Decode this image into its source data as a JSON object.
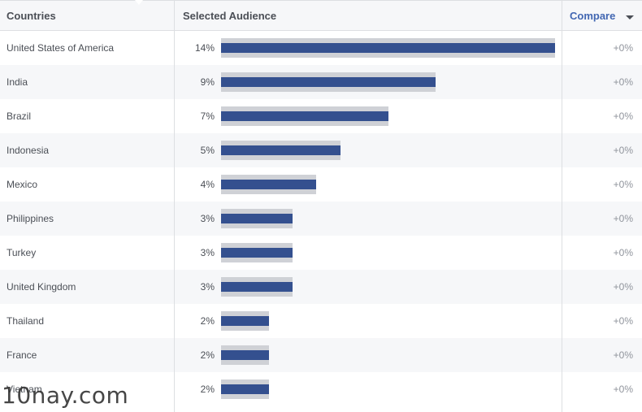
{
  "header": {
    "countries_label": "Countries",
    "audience_label": "Selected Audience",
    "compare_label": "Compare"
  },
  "rows": [
    {
      "country": "United States of America",
      "pct": "14%",
      "value": 14,
      "compare": "+0%"
    },
    {
      "country": "India",
      "pct": "9%",
      "value": 9,
      "compare": "+0%"
    },
    {
      "country": "Brazil",
      "pct": "7%",
      "value": 7,
      "compare": "+0%"
    },
    {
      "country": "Indonesia",
      "pct": "5%",
      "value": 5,
      "compare": "+0%"
    },
    {
      "country": "Mexico",
      "pct": "4%",
      "value": 4,
      "compare": "+0%"
    },
    {
      "country": "Philippines",
      "pct": "3%",
      "value": 3,
      "compare": "+0%"
    },
    {
      "country": "Turkey",
      "pct": "3%",
      "value": 3,
      "compare": "+0%"
    },
    {
      "country": "United Kingdom",
      "pct": "3%",
      "value": 3,
      "compare": "+0%"
    },
    {
      "country": "Thailand",
      "pct": "2%",
      "value": 2,
      "compare": "+0%"
    },
    {
      "country": "France",
      "pct": "2%",
      "value": 2,
      "compare": "+0%"
    },
    {
      "country": "Vietnam",
      "pct": "2%",
      "value": 2,
      "compare": "+0%"
    }
  ],
  "watermark": "10nay.com",
  "colors": {
    "bar": "#34508f",
    "track": "#cfd1d6",
    "accent": "#4267b2"
  }
}
